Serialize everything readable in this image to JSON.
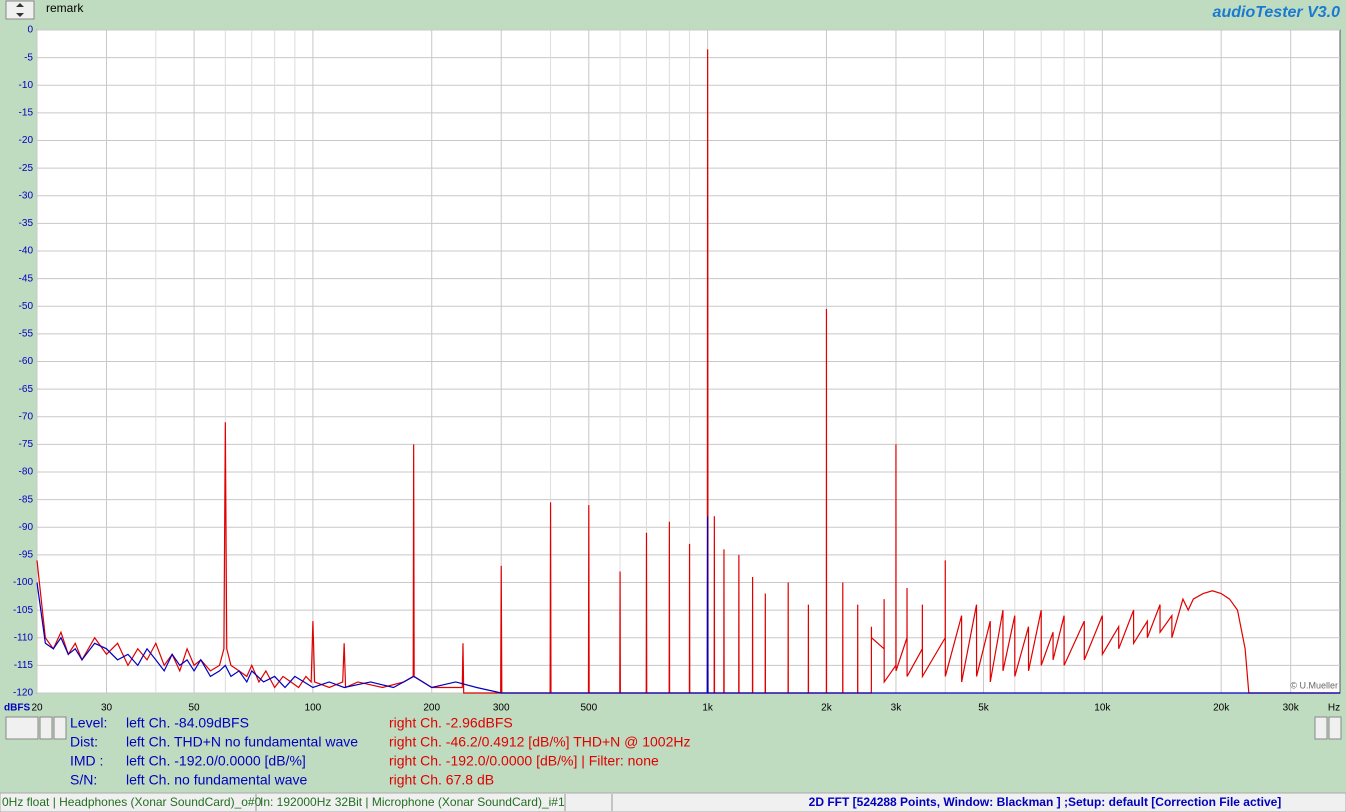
{
  "header": {
    "remark": "remark",
    "app": "audioTester  V3.0"
  },
  "chart_data": {
    "type": "line",
    "xlabel": "Hz",
    "ylabel": "dBFS",
    "credit": "© U.Mueller",
    "xscale": "log",
    "grid": true,
    "xlim": [
      20,
      40000
    ],
    "ylim": [
      -120,
      0
    ],
    "xticks": [
      20,
      30,
      50,
      100,
      200,
      300,
      500,
      {
        "value": 1000,
        "label": "1k"
      },
      {
        "value": 2000,
        "label": "2k"
      },
      {
        "value": 3000,
        "label": "3k"
      },
      {
        "value": 5000,
        "label": "5k"
      },
      {
        "value": 10000,
        "label": "10k"
      },
      {
        "value": 20000,
        "label": "20k"
      },
      {
        "value": 30000,
        "label": "30k"
      }
    ],
    "xminor": [
      40,
      60,
      70,
      80,
      90,
      400,
      600,
      700,
      800,
      900,
      4000,
      6000,
      7000,
      8000,
      9000
    ],
    "yticks": [
      0,
      -5,
      -10,
      -15,
      -20,
      -25,
      -30,
      -35,
      -40,
      -45,
      -50,
      -55,
      -60,
      -65,
      -70,
      -75,
      -80,
      -85,
      -90,
      -95,
      -100,
      -105,
      -110,
      -115,
      -120
    ],
    "series": [
      {
        "color": "#e00000",
        "x": [
          20,
          21,
          22,
          23,
          24,
          25,
          26,
          28,
          30,
          32,
          34,
          36,
          38,
          40,
          42,
          44,
          46,
          48,
          50,
          52,
          55,
          58,
          59.5,
          60,
          60.5,
          62,
          65,
          68,
          70,
          73,
          76,
          80,
          84,
          88,
          92,
          96,
          99,
          100,
          101,
          110,
          119,
          120,
          121,
          130,
          150,
          170,
          179.5,
          180,
          180.5,
          200,
          239,
          240,
          241,
          280,
          299,
          300,
          301,
          399,
          400,
          401,
          499,
          500,
          501,
          599,
          600,
          601,
          699,
          700,
          701,
          799,
          800,
          801,
          899,
          900,
          901,
          998,
          1000,
          1001,
          1002,
          1039,
          1040,
          1041,
          1099,
          1100,
          1101,
          1199,
          1200,
          1201,
          1299,
          1300,
          1301,
          1399,
          1400,
          1401,
          1599,
          1600,
          1601,
          1799,
          1800,
          1801,
          1999,
          2000,
          2001,
          2199,
          2200,
          2201,
          2399,
          2400,
          2401,
          2599,
          2600,
          2601,
          2799,
          2800,
          2801,
          2999,
          3000,
          3001,
          3199,
          3200,
          3201,
          3499,
          3500,
          3501,
          3999,
          4000,
          4001,
          4400,
          4401,
          4800,
          4801,
          5200,
          5201,
          5600,
          5601,
          6000,
          6001,
          6500,
          6501,
          7000,
          7001,
          7500,
          7501,
          8000,
          8001,
          9000,
          9001,
          10000,
          10001,
          11000,
          11001,
          12000,
          12001,
          13000,
          13001,
          14000,
          14001,
          15000,
          15001,
          16000,
          16500,
          17000,
          18000,
          19000,
          20000,
          21000,
          22000,
          23000,
          23500,
          40000
        ],
        "values": [
          -96,
          -110,
          -112,
          -109,
          -113,
          -111,
          -114,
          -110,
          -113,
          -111,
          -115,
          -112,
          -114,
          -111,
          -115,
          -113,
          -116,
          -112,
          -115,
          -114,
          -116,
          -115,
          -112,
          -71,
          -112,
          -115,
          -116,
          -117,
          -115,
          -118,
          -116,
          -119,
          -117,
          -118,
          -119,
          -117,
          -118,
          -107,
          -118,
          -119,
          -118,
          -111,
          -119,
          -118,
          -119,
          -118,
          -117,
          -75,
          -117,
          -119,
          -119,
          -111,
          -120,
          -120,
          -120,
          -97,
          -120,
          -120,
          -85.5,
          -120,
          -120,
          -86,
          -120,
          -120,
          -98,
          -120,
          -120,
          -91,
          -120,
          -120,
          -89,
          -120,
          -120,
          -93,
          -120,
          -120,
          -3.5,
          -38,
          -120,
          -120,
          -88,
          -120,
          -120,
          -94,
          -120,
          -120,
          -95,
          -120,
          -120,
          -99,
          -120,
          -120,
          -102,
          -120,
          -120,
          -100,
          -120,
          -120,
          -104,
          -120,
          -120,
          -50.5,
          -120,
          -120,
          -100,
          -120,
          -120,
          -104,
          -120,
          -120,
          -108,
          -110,
          -112,
          -103,
          -118,
          -115,
          -75,
          -116,
          -110,
          -101,
          -117,
          -112,
          -104,
          -117,
          -110,
          -96,
          -117,
          -106,
          -118,
          -104,
          -117,
          -107,
          -118,
          -105,
          -116,
          -106,
          -117,
          -108,
          -116,
          -105,
          -115,
          -109,
          -114,
          -106,
          -115,
          -107,
          -114,
          -106,
          -113,
          -108,
          -112,
          -105,
          -111,
          -107,
          -110,
          -104,
          -109,
          -106,
          -110,
          -103,
          -105,
          -103,
          -102,
          -101.5,
          -102,
          -103,
          -105,
          -112,
          -120,
          -120
        ]
      },
      {
        "color": "#0000c0",
        "x": [
          20,
          21,
          22,
          23,
          24,
          25,
          26,
          28,
          30,
          32,
          34,
          36,
          38,
          40,
          42,
          44,
          46,
          48,
          50,
          52,
          55,
          58,
          60,
          62,
          65,
          68,
          70,
          75,
          80,
          85,
          90,
          95,
          100,
          110,
          120,
          140,
          160,
          180,
          200,
          230,
          260,
          300,
          998,
          1000,
          1002,
          40000
        ],
        "values": [
          -100,
          -111,
          -112,
          -110,
          -113,
          -112,
          -114,
          -111,
          -112,
          -114,
          -113,
          -115,
          -112,
          -114,
          -116,
          -113,
          -115,
          -114,
          -116,
          -114,
          -117,
          -116,
          -115,
          -117,
          -116,
          -118,
          -116,
          -118,
          -117,
          -119,
          -117,
          -118,
          -119,
          -118,
          -119,
          -118,
          -119,
          -117,
          -119,
          -118,
          -119,
          -120,
          -120,
          -88,
          -120,
          -120
        ]
      }
    ]
  },
  "readout": {
    "rows": [
      [
        "Level:",
        "left Ch. -84.09dBFS",
        "right Ch. -2.96dBFS"
      ],
      [
        "Dist:",
        "left Ch. THD+N  no fundamental wave",
        "right Ch. -46.2/0.4912 [dB/%] THD+N  @ 1002Hz"
      ],
      [
        "IMD  :",
        "left Ch. -192.0/0.0000 [dB/%]",
        "right Ch. -192.0/0.0000 [dB/%] |   Filter: none"
      ],
      [
        "S/N:",
        "left Ch.  no fundamental wave",
        "right Ch. 67.8 dB"
      ]
    ]
  },
  "status": [
    "0Hz float  | Headphones (Xonar SoundCard)_o#0",
    "In: 192000Hz 32Bit  | Microphone (Xonar SoundCard)_i#1",
    "2D FFT [524288 Points, Window: Blackman ] ;Setup:  default  [Correction File active]"
  ]
}
